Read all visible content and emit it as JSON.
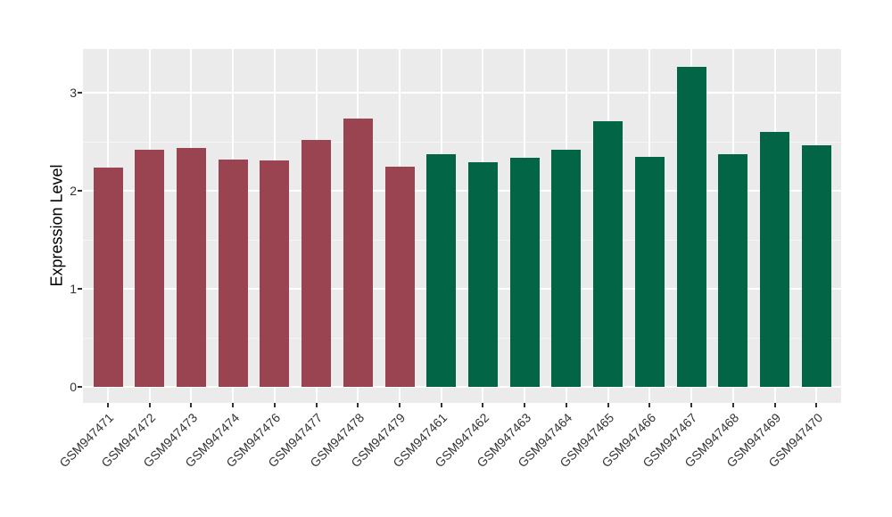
{
  "chart_data": {
    "type": "bar",
    "title": "",
    "xlabel": "",
    "ylabel": "Expression Level",
    "ylim": [
      -0.17,
      3.47
    ],
    "yticks": [
      0,
      1,
      2,
      3
    ],
    "yticks_minor": [
      0.5,
      1.5,
      2.5
    ],
    "grid": "on",
    "legend": "none",
    "panel_background": "#EBEBEB",
    "gridline_color": "#FFFFFF",
    "categories": [
      "GSM947471",
      "GSM947472",
      "GSM947473",
      "GSM947474",
      "GSM947476",
      "GSM947477",
      "GSM947478",
      "GSM947479",
      "GSM947461",
      "GSM947462",
      "GSM947463",
      "GSM947464",
      "GSM947465",
      "GSM947466",
      "GSM947467",
      "GSM947468",
      "GSM947469",
      "GSM947470"
    ],
    "values": [
      2.24,
      2.42,
      2.44,
      2.32,
      2.31,
      2.52,
      2.74,
      2.25,
      2.37,
      2.29,
      2.34,
      2.42,
      2.71,
      2.35,
      3.26,
      2.37,
      2.6,
      2.46
    ],
    "groups": [
      "A",
      "A",
      "A",
      "A",
      "A",
      "A",
      "A",
      "A",
      "B",
      "B",
      "B",
      "B",
      "B",
      "B",
      "B",
      "B",
      "B",
      "B"
    ],
    "group_colors": {
      "A": "#9A4452",
      "B": "#026646"
    }
  }
}
